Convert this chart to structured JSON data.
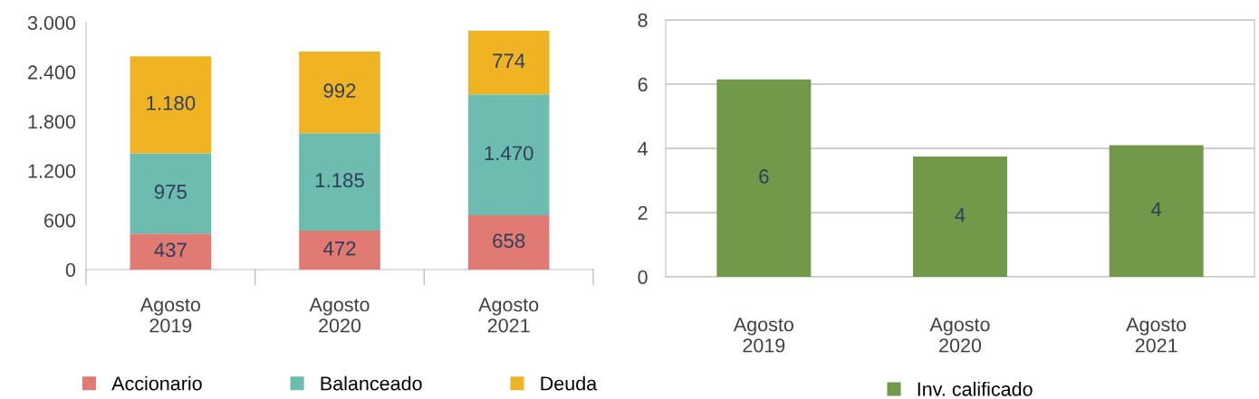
{
  "chart_data": [
    {
      "type": "bar",
      "stacked": true,
      "categories": [
        "Agosto\n2019",
        "Agosto\n2020",
        "Agosto\n2021"
      ],
      "ylim": [
        0,
        3000
      ],
      "yticks": [
        {
          "value": 0,
          "label": "0"
        },
        {
          "value": 600,
          "label": "600"
        },
        {
          "value": 1200,
          "label": "1.200"
        },
        {
          "value": 1800,
          "label": "1.800"
        },
        {
          "value": 2400,
          "label": "2.400"
        },
        {
          "value": 3000,
          "label": "3.000"
        }
      ],
      "grid": false,
      "legend": "bottom",
      "series": [
        {
          "name": "Accionario",
          "color": "#e07a72",
          "values": [
            437,
            472,
            658
          ],
          "value_labels": [
            "437",
            "472",
            "658"
          ]
        },
        {
          "name": "Balanceado",
          "color": "#6cbdb0",
          "values": [
            975,
            1185,
            1470
          ],
          "value_labels": [
            "975",
            "1.185",
            "1.470"
          ]
        },
        {
          "name": "Deuda",
          "color": "#f0b323",
          "values": [
            1180,
            992,
            774
          ],
          "value_labels": [
            "1.180",
            "992",
            "774"
          ]
        }
      ]
    },
    {
      "type": "bar",
      "categories": [
        "Agosto\n2019",
        "Agosto\n2020",
        "Agosto\n2021"
      ],
      "ylim": [
        0,
        8
      ],
      "yticks": [
        0,
        2,
        4,
        6,
        8
      ],
      "grid": "y",
      "legend": "bottom",
      "series": [
        {
          "name": "Inv. calificado",
          "color": "#72984a",
          "values": [
            6.15,
            3.75,
            4.1
          ],
          "value_labels": [
            "6",
            "4",
            "4"
          ]
        }
      ]
    }
  ]
}
